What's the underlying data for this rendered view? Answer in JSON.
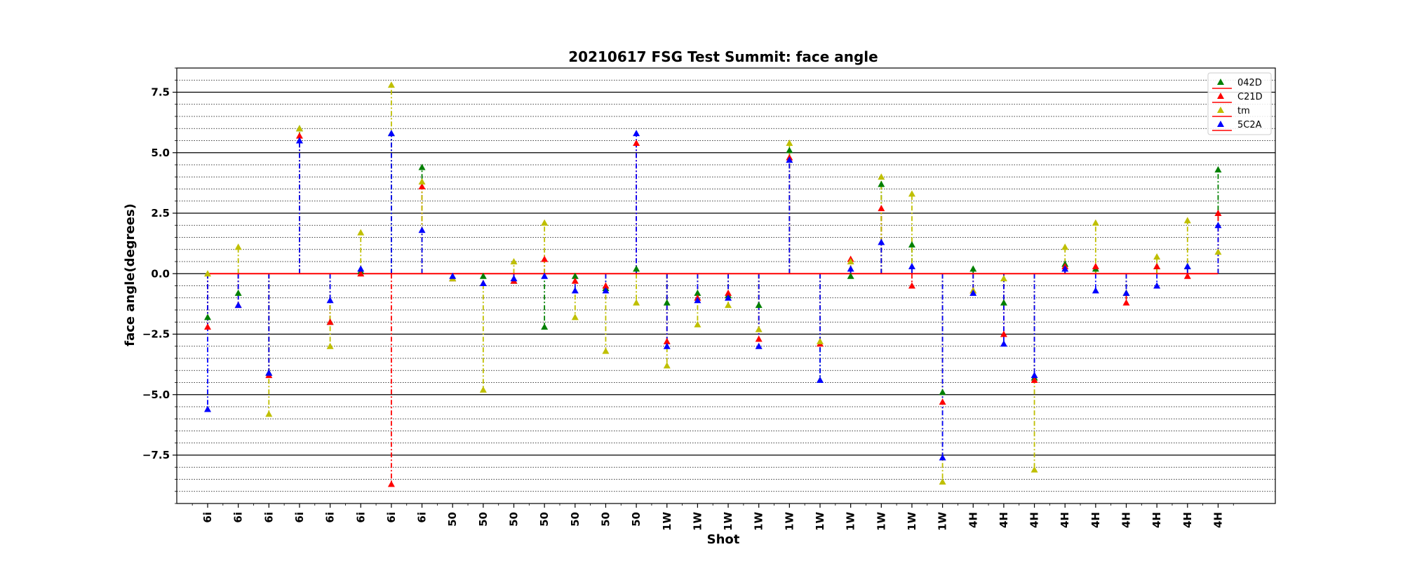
{
  "chart_data": {
    "type": "scatter",
    "title": "20210617 FSG Test Summit: face angle",
    "xlabel": "Shot",
    "ylabel": "face angle(degrees)",
    "ylim": [
      -9.5,
      8.5
    ],
    "yticks": [
      -7.5,
      -5.0,
      -2.5,
      0.0,
      2.5,
      5.0,
      7.5
    ],
    "ytick_labels": [
      "−7.5",
      "−5.0",
      "−2.5",
      "0.0",
      "2.5",
      "5.0",
      "7.5"
    ],
    "grid": "major solid, minor dotted on y axis",
    "legend_position": "top-right",
    "categories": [
      "6i",
      "6i",
      "6i",
      "6i",
      "6i",
      "6i",
      "6i",
      "6i",
      "50",
      "50",
      "50",
      "50",
      "50",
      "50",
      "50",
      "1W",
      "1W",
      "1W",
      "1W",
      "1W",
      "1W",
      "1W",
      "1W",
      "1W",
      "1W",
      "4H",
      "4H",
      "4H",
      "4H",
      "4H",
      "4H",
      "4H",
      "4H",
      "4H"
    ],
    "series": [
      {
        "name": "042D",
        "color": "#008000",
        "values": [
          -1.8,
          -0.8,
          -4.1,
          6.0,
          -2.0,
          0.1,
          5.8,
          4.4,
          -0.2,
          -0.1,
          -0.3,
          -2.2,
          -0.1,
          -0.6,
          0.2,
          -1.2,
          -0.8,
          -0.9,
          -1.3,
          5.1,
          -4.4,
          -0.1,
          3.7,
          1.2,
          -4.9,
          0.2,
          -1.2,
          -4.3,
          0.4,
          0.2,
          -0.8,
          0.3,
          0.3,
          4.3
        ]
      },
      {
        "name": "C21D",
        "color": "#ff0000",
        "values": [
          -2.2,
          -1.3,
          -4.2,
          5.7,
          -2.0,
          0.0,
          -8.7,
          3.6,
          -0.2,
          -0.4,
          -0.3,
          0.6,
          -0.3,
          -0.5,
          5.4,
          -2.8,
          -1.0,
          -0.8,
          -2.7,
          4.8,
          -2.9,
          0.6,
          2.7,
          -0.5,
          -5.3,
          -0.7,
          -2.5,
          -4.4,
          0.3,
          0.3,
          -1.2,
          0.3,
          -0.1,
          2.5
        ]
      },
      {
        "name": "tm",
        "color": "#bfbf00",
        "values": [
          0.0,
          1.1,
          -5.8,
          6.0,
          -3.0,
          1.7,
          7.8,
          3.8,
          -0.2,
          -4.8,
          0.5,
          2.1,
          -1.8,
          -3.2,
          -1.2,
          -3.8,
          -2.1,
          -1.3,
          -2.3,
          5.4,
          -2.8,
          0.5,
          4.0,
          3.3,
          -8.6,
          -0.7,
          -0.2,
          -8.1,
          1.1,
          2.1,
          -0.8,
          0.7,
          2.2,
          0.9
        ]
      },
      {
        "name": "5C2A",
        "color": "#0000ff",
        "values": [
          -5.6,
          -1.3,
          -4.1,
          5.5,
          -1.1,
          0.2,
          5.8,
          1.8,
          -0.1,
          -0.4,
          -0.2,
          -0.1,
          -0.7,
          -0.7,
          5.8,
          -3.0,
          -1.1,
          -1.0,
          -3.0,
          4.7,
          -4.4,
          0.2,
          1.3,
          0.3,
          -7.6,
          -0.8,
          -2.9,
          -4.2,
          0.2,
          -0.7,
          -0.8,
          -0.5,
          0.3,
          2.0
        ]
      }
    ]
  }
}
